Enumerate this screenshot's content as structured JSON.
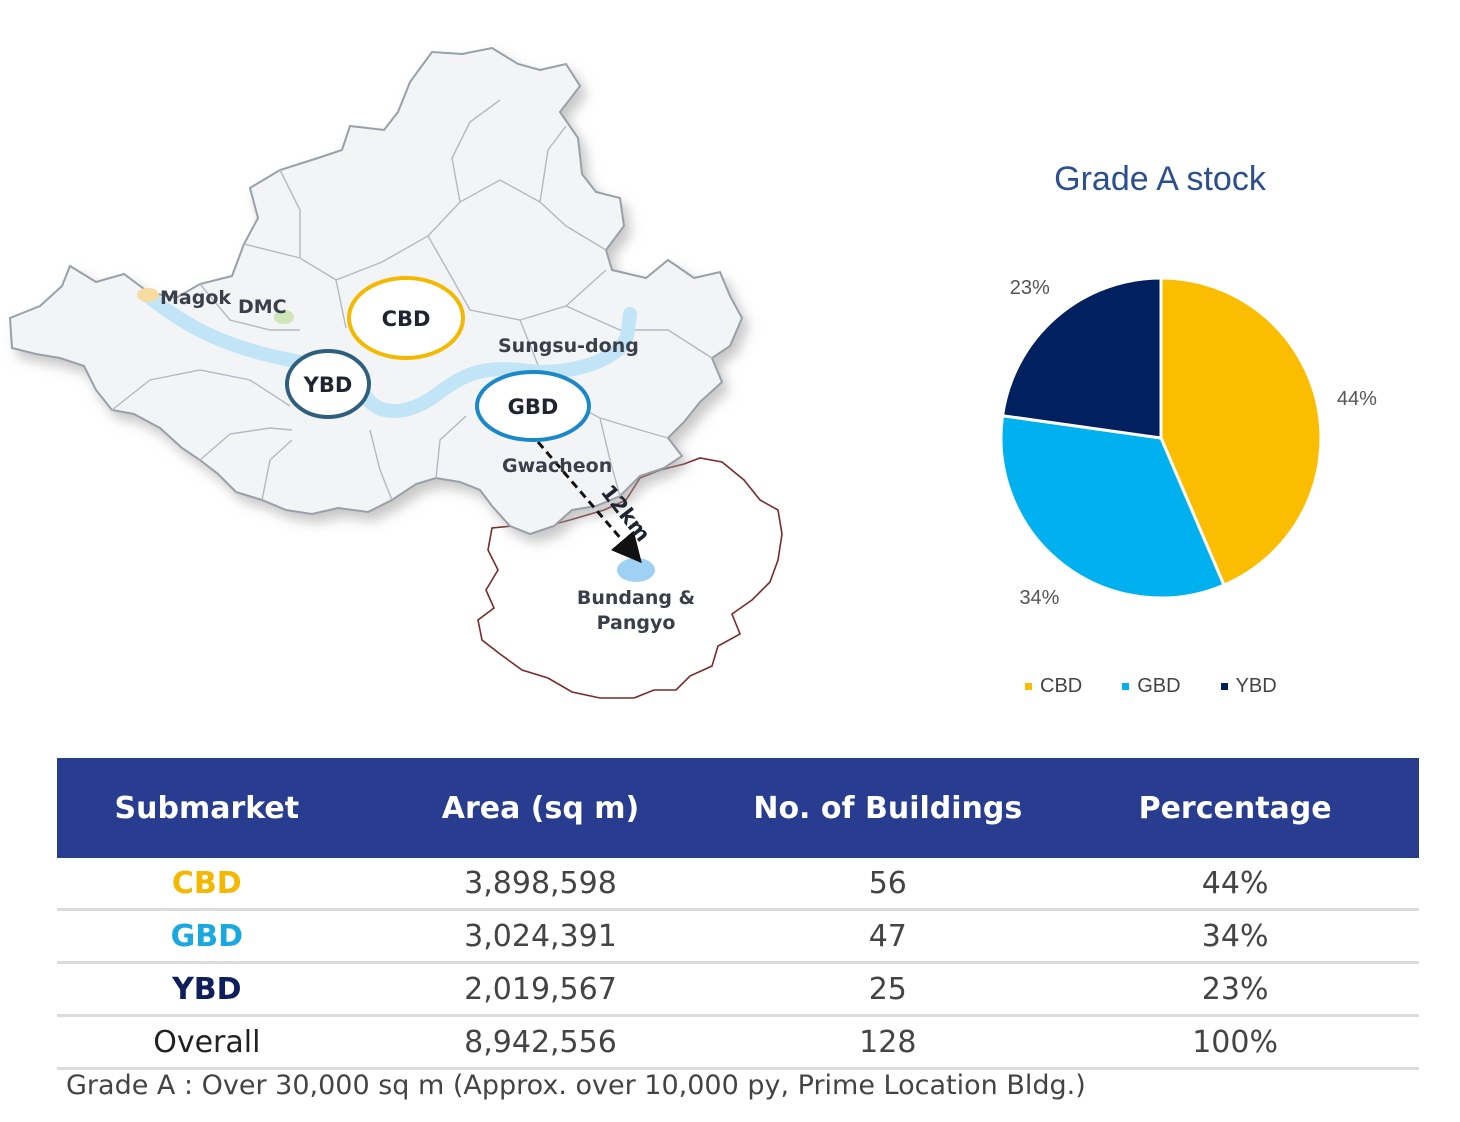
{
  "map": {
    "labels": {
      "magok": "Magok",
      "dmc": "DMC",
      "cbd": "CBD",
      "ybd": "YBD",
      "gbd": "GBD",
      "sungsu": "Sungsu-dong",
      "gwacheon": "Gwacheon",
      "distance": "12km",
      "bundang_line1": "Bundang &",
      "bundang_line2": "Pangyo"
    },
    "colors": {
      "cbd": "#f5b800",
      "ybd": "#2f5f7f",
      "gbd": "#1a88c9",
      "river": "#bfe3f6"
    }
  },
  "chart_data": {
    "type": "pie",
    "title": "Grade A stock",
    "series": [
      {
        "name": "CBD",
        "value": 44,
        "label": "44%",
        "color": "#fbbd00"
      },
      {
        "name": "GBD",
        "value": 34,
        "label": "34%",
        "color": "#00b0ef"
      },
      {
        "name": "YBD",
        "value": 23,
        "label": "23%",
        "color": "#002060"
      }
    ],
    "legend_position": "bottom"
  },
  "table": {
    "headers": [
      "Submarket",
      "Area (sq m)",
      "No. of Buildings",
      "Percentage"
    ],
    "rows": [
      {
        "submarket": "CBD",
        "area": "3,898,598",
        "buildings": "56",
        "percentage": "44%",
        "color": "#f5b800"
      },
      {
        "submarket": "GBD",
        "area": "3,024,391",
        "buildings": "47",
        "percentage": "34%",
        "color": "#19a8e0"
      },
      {
        "submarket": "YBD",
        "area": "2,019,567",
        "buildings": "25",
        "percentage": "23%",
        "color": "#0f1f5c"
      },
      {
        "submarket": "Overall",
        "area": "8,942,556",
        "buildings": "128",
        "percentage": "100%",
        "color": "#222222"
      }
    ]
  },
  "footnote": "Grade A : Over 30,000 sq m  (Approx. over 10,000 py, Prime Location Bldg.)"
}
